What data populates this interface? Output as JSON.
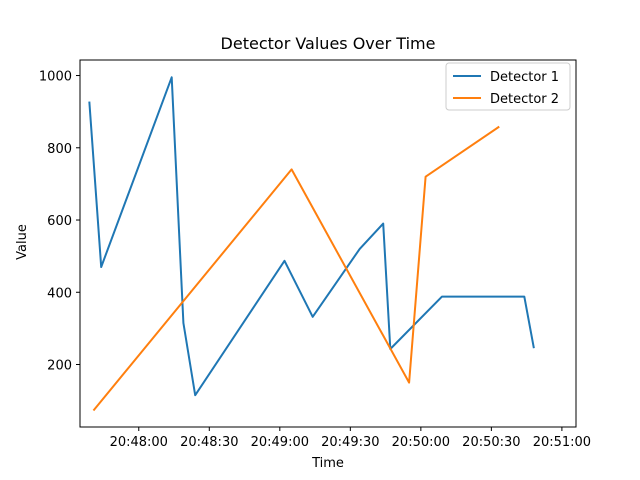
{
  "chart_data": {
    "type": "line",
    "title": "Detector Values Over Time",
    "xlabel": "Time",
    "ylabel": "Value",
    "x_axis": {
      "type": "time",
      "ticks": [
        "20:48:00",
        "20:48:30",
        "20:49:00",
        "20:49:30",
        "20:50:00",
        "20:50:30",
        "20:51:00"
      ]
    },
    "y_axis": {
      "ticks": [
        200,
        400,
        600,
        800,
        1000
      ]
    },
    "xlim": [
      "20:47:35",
      "20:51:06"
    ],
    "ylim": [
      27,
      1043
    ],
    "grid": false,
    "legend": {
      "position": "upper right",
      "entries": [
        "Detector 1",
        "Detector 2"
      ]
    },
    "series": [
      {
        "name": "Detector 1",
        "color": "#1f77b4",
        "x": [
          "20:47:39",
          "20:47:44",
          "20:48:14",
          "20:48:19",
          "20:48:24",
          "20:49:02",
          "20:49:14",
          "20:49:34",
          "20:49:44",
          "20:49:47",
          "20:50:09",
          "20:50:44",
          "20:50:48"
        ],
        "y": [
          925,
          470,
          995,
          315,
          115,
          487,
          332,
          520,
          590,
          243,
          388,
          388,
          248
        ],
        "x_note": null
      },
      {
        "name": "Detector 2",
        "color": "#ff7f0e",
        "x": [
          "20:47:41",
          "20:49:05",
          "20:49:55",
          "20:50:02",
          "20:50:33"
        ],
        "y": [
          75,
          740,
          150,
          720,
          857
        ]
      }
    ]
  }
}
